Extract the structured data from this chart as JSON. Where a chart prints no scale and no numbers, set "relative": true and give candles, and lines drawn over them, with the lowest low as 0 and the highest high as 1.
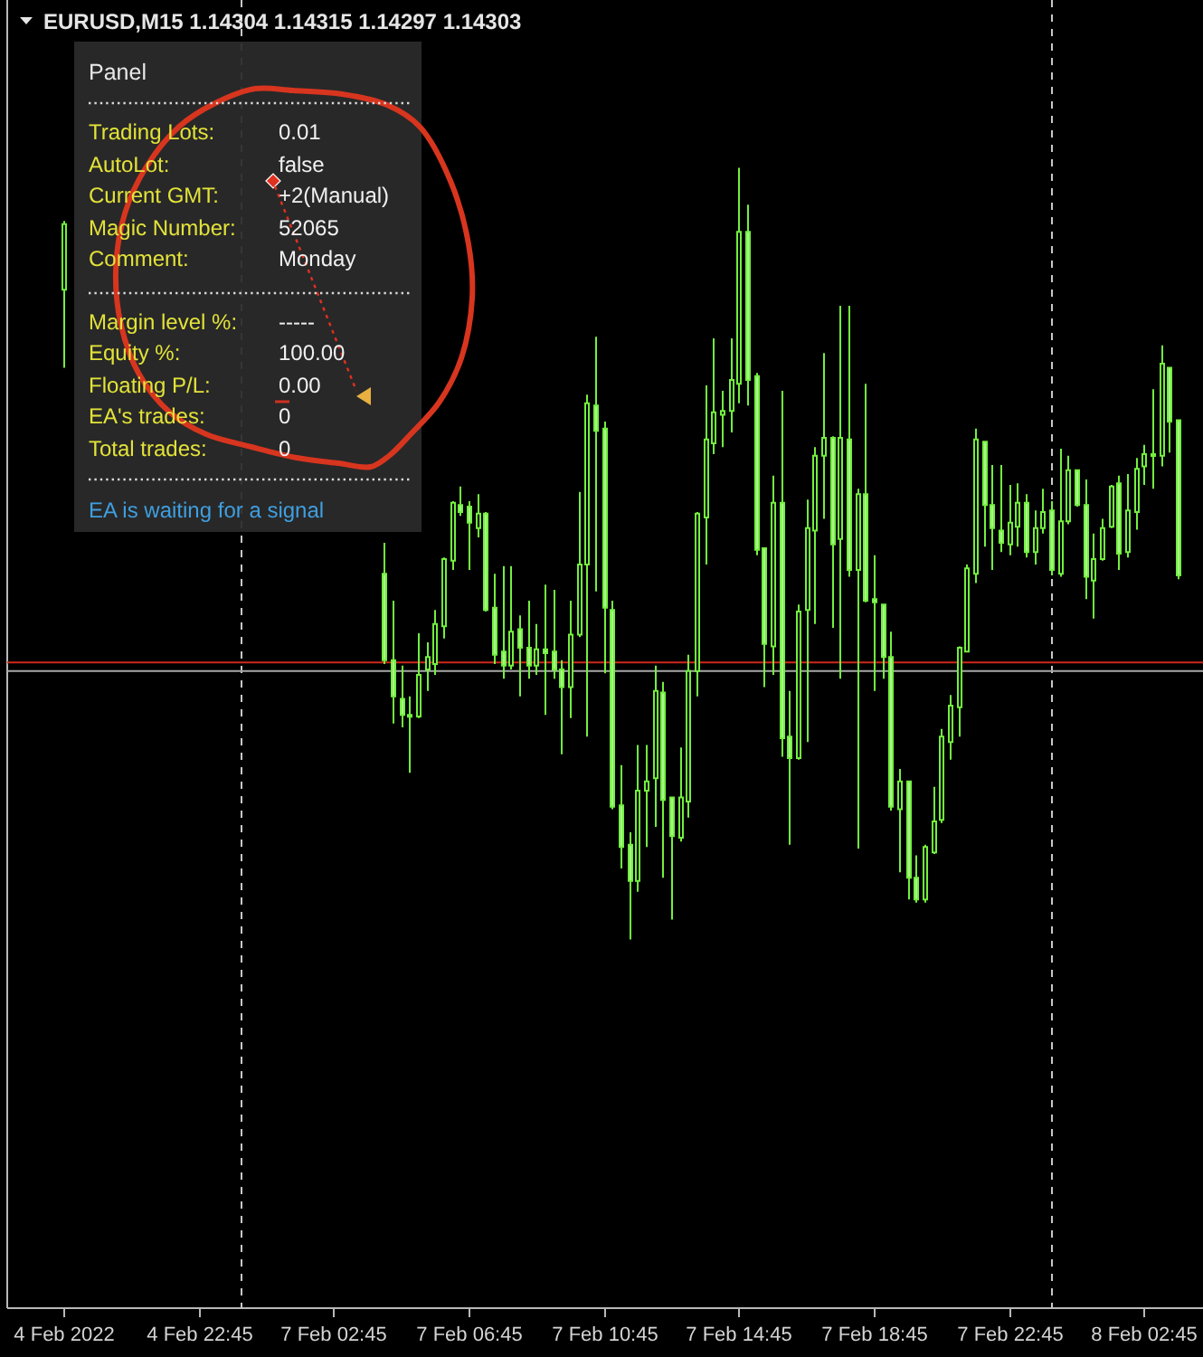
{
  "chart_data": [
    {
      "type": "candlestick",
      "title": "EURUSD,M15 1.14304 1.14315 1.14297 1.14303",
      "relative": true,
      "color": "#72f03e",
      "categories": [
        "4 Feb 2022",
        null,
        null,
        null,
        null,
        null,
        null,
        null,
        null,
        null,
        null,
        null,
        null,
        null,
        null,
        null,
        "4 Feb 22:45",
        null,
        null,
        null,
        null,
        null,
        null,
        null,
        null,
        null,
        null,
        null,
        null,
        null,
        null,
        null,
        "7 Feb 02:45",
        null,
        null,
        null,
        null,
        null,
        null,
        null,
        null,
        null,
        null,
        null,
        null,
        null,
        null,
        null,
        "7 Feb 06:45",
        null,
        null,
        null,
        null,
        null,
        null,
        null,
        null,
        null,
        null,
        null,
        null,
        null,
        null,
        null,
        "7 Feb 10:45",
        null,
        null,
        null,
        null,
        null,
        null,
        null,
        null,
        null,
        null,
        null,
        null,
        null,
        null,
        null,
        "7 Feb 14:45",
        null,
        null,
        null,
        null,
        null,
        null,
        null,
        null,
        null,
        null,
        null,
        null,
        null,
        null,
        null,
        "7 Feb 18:45",
        null,
        null,
        null,
        null,
        null,
        null,
        null,
        null,
        null,
        null,
        null,
        null,
        null,
        null,
        null,
        "7 Feb 22:45",
        null,
        null,
        null,
        null,
        null,
        null,
        null,
        null,
        null,
        null,
        null,
        null,
        null,
        null,
        null,
        "8 Feb 02:45",
        null,
        null,
        null,
        null
      ],
      "ohlc": [
        [
          0.842,
          0.931,
          0.741,
          0.927
        ],
        null,
        null,
        null,
        null,
        null,
        null,
        null,
        null,
        null,
        null,
        null,
        null,
        null,
        null,
        null,
        null,
        null,
        null,
        null,
        null,
        null,
        null,
        null,
        null,
        null,
        null,
        null,
        null,
        null,
        null,
        null,
        null,
        null,
        null,
        null,
        null,
        null,
        [
          0.474,
          0.514,
          0.357,
          0.362
        ],
        [
          0.362,
          0.439,
          0.28,
          0.315
        ],
        [
          0.312,
          0.355,
          0.275,
          0.291
        ],
        [
          0.291,
          0.315,
          0.216,
          0.289
        ],
        [
          0.289,
          0.397,
          0.287,
          0.343
        ],
        [
          0.35,
          0.385,
          0.322,
          0.366
        ],
        [
          0.357,
          0.427,
          0.343,
          0.409
        ],
        [
          0.406,
          0.495,
          0.39,
          0.493
        ],
        [
          0.491,
          0.568,
          0.479,
          0.566
        ],
        [
          0.563,
          0.587,
          0.549,
          0.554
        ],
        [
          0.561,
          0.568,
          0.479,
          0.54
        ],
        [
          0.533,
          0.577,
          0.521,
          0.552
        ],
        [
          0.552,
          0.554,
          0.425,
          0.427
        ],
        [
          0.43,
          0.474,
          0.357,
          0.369
        ],
        [
          0.373,
          0.484,
          0.338,
          0.355
        ],
        [
          0.355,
          0.484,
          0.35,
          0.399
        ],
        [
          0.402,
          0.42,
          0.315,
          0.378
        ],
        [
          0.378,
          0.439,
          0.338,
          0.355
        ],
        [
          0.355,
          0.409,
          0.343,
          0.376
        ],
        [
          0.376,
          0.46,
          0.291,
          0.371
        ],
        [
          0.373,
          0.453,
          0.338,
          0.35
        ],
        [
          0.35,
          0.362,
          0.24,
          0.327
        ],
        [
          0.327,
          0.439,
          0.287,
          0.395
        ],
        [
          0.395,
          0.58,
          0.392,
          0.486
        ],
        [
          0.486,
          0.706,
          0.263,
          0.695
        ],
        [
          0.692,
          0.781,
          0.451,
          0.659
        ],
        [
          0.662,
          0.671,
          0.345,
          0.43
        ],
        [
          0.427,
          0.439,
          0.169,
          0.172
        ],
        [
          0.174,
          0.226,
          0.092,
          0.12
        ],
        [
          0.123,
          0.139,
          0,
          0.076
        ],
        [
          0.076,
          0.252,
          0.062,
          0.193
        ],
        [
          0.193,
          0.252,
          0.12,
          0.205
        ],
        [
          0.209,
          0.355,
          0.146,
          0.322
        ],
        [
          0.32,
          0.334,
          0.08,
          0.181
        ],
        [
          0.184,
          0.184,
          0.026,
          0.134
        ],
        [
          0.132,
          0.249,
          0.127,
          0.184
        ],
        [
          0.179,
          0.369,
          0.158,
          0.348
        ],
        [
          0.348,
          0.554,
          0.315,
          0.552
        ],
        [
          0.547,
          0.718,
          0.486,
          0.648
        ],
        [
          0.643,
          0.779,
          0.629,
          0.683
        ],
        [
          0.68,
          0.711,
          0.638,
          0.685
        ],
        [
          0.685,
          0.779,
          0.657,
          0.725
        ],
        [
          0.72,
          1,
          0.695,
          0.917
        ],
        [
          0.917,
          0.952,
          0.692,
          0.725
        ],
        [
          0.73,
          0.734,
          0.498,
          0.505
        ],
        [
          0.507,
          0.507,
          0.327,
          0.383
        ],
        [
          0.38,
          0.601,
          0.343,
          0.566
        ],
        [
          0.566,
          0.711,
          0.237,
          0.261
        ],
        [
          0.263,
          0.322,
          0.123,
          0.235
        ],
        [
          0.235,
          0.434,
          0.233,
          0.425
        ],
        [
          0.427,
          0.57,
          0.256,
          0.533
        ],
        [
          0.53,
          0.638,
          0.409,
          0.627
        ],
        [
          0.627,
          0.76,
          0.545,
          0.65
        ],
        [
          0.65,
          0.652,
          0.404,
          0.512
        ],
        [
          0.519,
          0.821,
          0.338,
          0.65
        ],
        [
          0.648,
          0.821,
          0.47,
          0.479
        ],
        [
          0.479,
          0.584,
          0.118,
          0.577
        ],
        [
          0.577,
          0.72,
          0.437,
          0.439
        ],
        [
          0.441,
          0.498,
          0.322,
          0.437
        ],
        [
          0.434,
          0.434,
          0.338,
          0.366
        ],
        [
          0.366,
          0.399,
          0.167,
          0.172
        ],
        [
          0.169,
          0.221,
          0.087,
          0.205
        ],
        [
          0.205,
          0.205,
          0.052,
          0.08
        ],
        [
          0.08,
          0.109,
          0.048,
          0.052
        ],
        [
          0.052,
          0.123,
          0.048,
          0.12
        ],
        [
          0.113,
          0.198,
          0.111,
          0.153
        ],
        [
          0.155,
          0.273,
          0.151,
          0.263
        ],
        [
          0.256,
          0.317,
          0.233,
          0.303
        ],
        [
          0.301,
          0.38,
          0.263,
          0.378
        ],
        [
          0.373,
          0.486,
          0.373,
          0.481
        ],
        [
          0.474,
          0.662,
          0.462,
          0.648
        ],
        [
          0.645,
          0.645,
          0.509,
          0.563
        ],
        [
          0.563,
          0.615,
          0.479,
          0.533
        ],
        [
          0.53,
          0.615,
          0.502,
          0.514
        ],
        [
          0.512,
          0.589,
          0.498,
          0.54
        ],
        [
          0.535,
          0.591,
          0.509,
          0.566
        ],
        [
          0.566,
          0.577,
          0.495,
          0.502
        ],
        [
          0.502,
          0.556,
          0.486,
          0.533
        ],
        [
          0.533,
          0.584,
          0.526,
          0.554
        ],
        [
          0.556,
          0.568,
          0.472,
          0.479
        ],
        [
          0.474,
          0.636,
          0.47,
          0.542
        ],
        [
          0.542,
          0.627,
          0.538,
          0.608
        ],
        [
          0.608,
          0.608,
          0.561,
          0.563
        ],
        [
          0.563,
          0.596,
          0.441,
          0.47
        ],
        [
          0.465,
          0.526,
          0.416,
          0.493
        ],
        [
          0.493,
          0.545,
          0.491,
          0.533
        ],
        [
          0.535,
          0.589,
          0.533,
          0.587
        ],
        [
          0.591,
          0.601,
          0.479,
          0.5
        ],
        [
          0.502,
          0.603,
          0.495,
          0.556
        ],
        [
          0.554,
          0.624,
          0.531,
          0.61
        ],
        [
          0.613,
          0.641,
          0.589,
          0.629
        ],
        [
          0.627,
          0.713,
          0.584,
          0.629
        ],
        [
          0.627,
          0.77,
          0.613,
          0.746
        ],
        [
          0.741,
          0.741,
          0.631,
          0.671
        ],
        [
          0.673,
          0.673,
          0.467,
          0.472
        ]
      ],
      "ref_lines": [
        {
          "axis": "y",
          "value": 0.359,
          "color": "#d0281c"
        },
        {
          "axis": "y",
          "value": 0.348,
          "color": "#a8a8a8"
        }
      ]
    },
    {
      "type": "other",
      "title": "Panel",
      "annotations": [
        "Trading Lots:",
        "0.01",
        "AutoLot:",
        "false",
        "Current GMT:",
        "+2(Manual)",
        "Magic Number:",
        "52065",
        "Comment:",
        "Monday",
        "Margin level %:",
        "-----",
        "Equity %:",
        "100.00",
        "Floating P/L:",
        "0.00",
        "EA's trades:",
        "0",
        "Total trades:",
        "0",
        "EA is waiting for a signal"
      ]
    }
  ]
}
